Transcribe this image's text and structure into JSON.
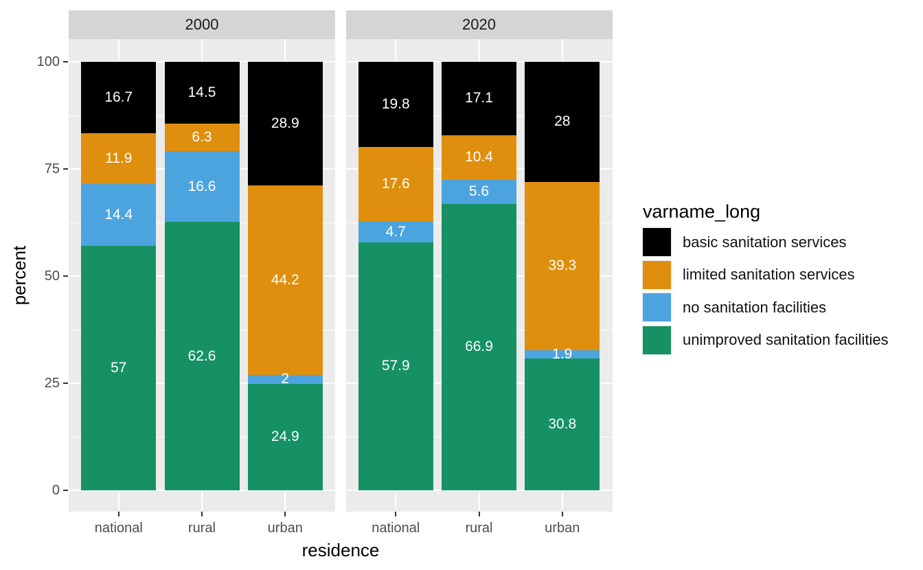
{
  "chart_data": {
    "type": "bar",
    "variant": "stacked",
    "title": "",
    "xlabel": "residence",
    "ylabel": "percent",
    "ylim": [
      0,
      100
    ],
    "yticks": [
      0,
      25,
      50,
      75,
      100
    ],
    "grid": true,
    "facets": [
      "2000",
      "2020"
    ],
    "categories": [
      "national",
      "rural",
      "urban"
    ],
    "legend_title": "varname_long",
    "legend_position": "right",
    "series": [
      {
        "name": "basic sanitation services",
        "color": "#000000",
        "values": {
          "2000": [
            16.7,
            14.5,
            28.9
          ],
          "2020": [
            19.8,
            17.1,
            28
          ]
        }
      },
      {
        "name": "limited sanitation services",
        "color": "#DF8F0D",
        "values": {
          "2000": [
            11.9,
            6.3,
            44.2
          ],
          "2020": [
            17.6,
            10.4,
            39.3
          ]
        }
      },
      {
        "name": "no sanitation facilities",
        "color": "#4CA4DF",
        "values": {
          "2000": [
            14.4,
            16.6,
            2
          ],
          "2020": [
            4.7,
            5.6,
            1.9
          ]
        }
      },
      {
        "name": "unimproved sanitation facilities",
        "color": "#169164",
        "values": {
          "2000": [
            57,
            62.6,
            24.9
          ],
          "2020": [
            57.9,
            66.9,
            30.8
          ]
        }
      }
    ],
    "stack_order_bottom_to_top": [
      "unimproved sanitation facilities",
      "no sanitation facilities",
      "limited sanitation services",
      "basic sanitation services"
    ],
    "bar_label_color": "#FFFFFF",
    "style": {
      "panel_bg": "#EBEBEB",
      "strip_bg": "#D5D5D5",
      "grid_color": "#FFFFFF",
      "tick_mark_color": "#333333",
      "tick_label_color": "#4D4D4D",
      "strip_text_color": "#1A1A1A",
      "axis_title_color": "#000000"
    }
  }
}
